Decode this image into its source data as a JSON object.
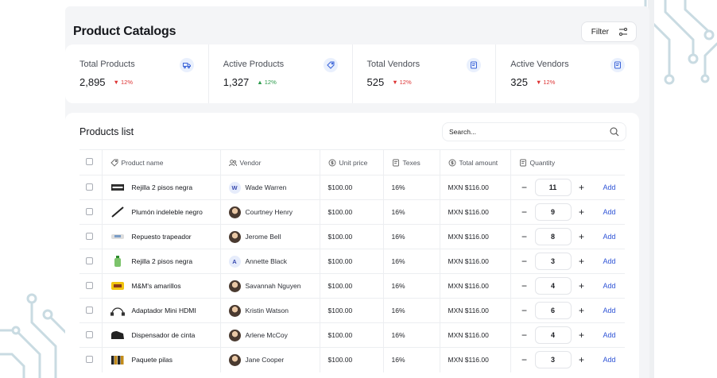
{
  "page": {
    "title": "Product Catalogs",
    "filter_label": "Filter"
  },
  "stats": [
    {
      "label": "Total Products",
      "value": "2,895",
      "change": "12%",
      "direction": "down",
      "icon": "truck-icon"
    },
    {
      "label": "Active Products",
      "value": "1,327",
      "change": "12%",
      "direction": "up",
      "icon": "tag-icon"
    },
    {
      "label": "Total Vendors",
      "value": "525",
      "change": "12%",
      "direction": "down",
      "icon": "receipt-icon"
    },
    {
      "label": "Active Vendors",
      "value": "325",
      "change": "12%",
      "direction": "down",
      "icon": "receipt-icon"
    }
  ],
  "products": {
    "title": "Products list",
    "search_placeholder": "Search...",
    "columns": [
      "Product name",
      "Vendor",
      "Unit price",
      "Texes",
      "Total amount",
      "Quantity"
    ],
    "add_label": "Add",
    "rows": [
      {
        "product": "Rejilla 2 pisos negra",
        "thumb": "rack-icon",
        "vendor": "Wade Warren",
        "avatar": "W",
        "price": "$100.00",
        "tax": "16%",
        "total": "MXN $116.00",
        "qty": "11"
      },
      {
        "product": "Plumón indeleble negro",
        "thumb": "marker-icon",
        "vendor": "Courtney Henry",
        "avatar": "",
        "price": "$100.00",
        "tax": "16%",
        "total": "MXN $116.00",
        "qty": "9"
      },
      {
        "product": "Repuesto trapeador",
        "thumb": "mop-refill-icon",
        "vendor": "Jerome Bell",
        "avatar": "",
        "price": "$100.00",
        "tax": "16%",
        "total": "MXN $116.00",
        "qty": "8"
      },
      {
        "product": "Rejilla 2 pisos negra",
        "thumb": "bottle-icon",
        "vendor": "Annette Black",
        "avatar": "A",
        "price": "$100.00",
        "tax": "16%",
        "total": "MXN $116.00",
        "qty": "3"
      },
      {
        "product": "M&M's amarillos",
        "thumb": "candy-pack-icon",
        "vendor": "Savannah Nguyen",
        "avatar": "",
        "price": "$100.00",
        "tax": "16%",
        "total": "MXN $116.00",
        "qty": "4"
      },
      {
        "product": "Adaptador Mini HDMI",
        "thumb": "cable-icon",
        "vendor": "Kristin Watson",
        "avatar": "",
        "price": "$100.00",
        "tax": "16%",
        "total": "MXN $116.00",
        "qty": "6"
      },
      {
        "product": "Dispensador de cinta",
        "thumb": "tape-dispenser-icon",
        "vendor": "Arlene McCoy",
        "avatar": "",
        "price": "$100.00",
        "tax": "16%",
        "total": "MXN $116.00",
        "qty": "4"
      },
      {
        "product": "Paquete pilas",
        "thumb": "batteries-icon",
        "vendor": "Jane Cooper",
        "avatar": "",
        "price": "$100.00",
        "tax": "16%",
        "total": "MXN $116.00",
        "qty": "3"
      }
    ]
  },
  "colors": {
    "accent": "#2f54d6",
    "down": "#dd3333",
    "up": "#2a9a4a",
    "background": "#f4f5f7"
  }
}
